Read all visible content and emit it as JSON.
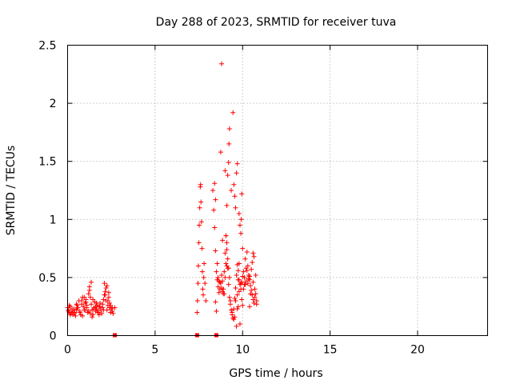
{
  "chart_data": {
    "type": "scatter",
    "title": "Day 288 of 2023, SRMTID for receiver tuva",
    "xlabel": "GPS time / hours",
    "ylabel": "SRMTID / TECUs",
    "xlim": [
      0,
      24
    ],
    "ylim": [
      0,
      2.5
    ],
    "xticks": [
      "0",
      "5",
      "10",
      "15",
      "20"
    ],
    "yticks": [
      "0",
      "0.5",
      "1",
      "1.5",
      "2",
      "2.5"
    ],
    "grid": true,
    "marker": "plus",
    "color": "#ff0000",
    "series": [
      {
        "name": "SRMTID",
        "x": [
          0.0,
          0.05,
          0.1,
          0.15,
          0.2,
          0.25,
          0.3,
          0.35,
          0.4,
          0.45,
          0.5,
          0.55,
          0.6,
          0.65,
          0.7,
          0.75,
          0.8,
          0.85,
          0.9,
          0.95,
          1.0,
          1.05,
          1.1,
          1.15,
          1.2,
          1.25,
          1.3,
          1.35,
          1.4,
          1.45,
          1.5,
          1.55,
          1.6,
          1.65,
          1.7,
          1.75,
          1.8,
          1.85,
          1.9,
          1.95,
          2.0,
          2.05,
          2.1,
          2.15,
          2.2,
          2.25,
          2.3,
          2.35,
          2.4,
          2.45,
          2.5,
          2.55,
          2.6,
          2.7,
          0.05,
          0.15,
          0.25,
          0.4,
          0.55,
          0.7,
          0.85,
          1.0,
          1.1,
          1.2,
          1.3,
          1.4,
          1.5,
          1.6,
          1.7,
          1.8,
          1.9,
          2.0,
          2.1,
          2.2,
          2.3,
          2.4,
          0.1,
          0.3,
          0.5,
          0.8,
          0.95,
          1.05,
          1.25,
          1.35,
          1.45,
          1.65,
          1.85,
          2.05,
          2.15,
          2.25,
          2.35,
          2.45,
          2.55,
          7.4,
          7.42,
          7.45,
          7.47,
          7.5,
          7.52,
          7.55,
          7.58,
          7.6,
          7.62,
          7.65,
          7.68,
          7.7,
          7.72,
          7.75,
          7.78,
          7.8,
          7.85,
          7.9,
          8.3,
          8.35,
          8.4,
          8.45,
          8.5,
          8.55,
          8.6,
          8.65,
          8.7,
          8.75,
          8.8,
          8.85,
          8.9,
          8.95,
          9.0,
          9.05,
          9.1,
          9.15,
          9.2,
          9.25,
          9.3,
          9.35,
          9.4,
          9.45,
          9.5,
          9.55,
          9.6,
          9.65,
          9.7,
          9.75,
          9.8,
          9.85,
          9.9,
          9.95,
          10.0,
          10.05,
          10.1,
          10.15,
          10.2,
          10.25,
          10.3,
          10.35,
          10.4,
          10.45,
          10.5,
          10.55,
          10.6,
          10.65,
          10.7,
          10.75,
          10.8,
          8.4,
          8.45,
          8.55,
          8.6,
          8.7,
          8.8,
          8.85,
          8.9,
          9.0,
          9.05,
          9.1,
          9.15,
          9.2,
          9.25,
          9.3,
          9.4,
          9.5,
          9.6,
          9.7,
          9.75,
          9.8,
          9.9,
          9.95,
          10.0,
          10.1,
          10.2,
          10.3,
          10.4,
          10.5,
          10.6,
          10.7,
          8.75,
          8.8,
          9.05,
          9.1,
          9.15,
          9.2,
          9.22,
          9.25,
          9.5,
          9.55,
          9.6,
          9.65,
          9.7,
          9.8,
          9.85,
          9.9,
          9.92,
          9.95,
          10.0,
          8.85,
          9.0,
          9.35,
          9.45,
          9.6,
          9.75,
          9.85,
          10.05,
          10.25,
          10.35,
          10.45,
          10.55,
          10.65,
          10.75,
          8.45,
          8.5,
          8.65,
          8.95,
          9.1,
          9.55,
          9.65,
          9.7,
          9.8,
          10.15,
          10.4,
          10.6,
          10.8
        ],
        "y": [
          0.24,
          0.22,
          0.2,
          0.25,
          0.19,
          0.21,
          0.18,
          0.23,
          0.2,
          0.17,
          0.22,
          0.26,
          0.24,
          0.3,
          0.21,
          0.18,
          0.27,
          0.33,
          0.25,
          0.22,
          0.28,
          0.31,
          0.24,
          0.2,
          0.36,
          0.42,
          0.33,
          0.27,
          0.22,
          0.18,
          0.24,
          0.29,
          0.21,
          0.23,
          0.26,
          0.2,
          0.25,
          0.28,
          0.22,
          0.19,
          0.24,
          0.31,
          0.45,
          0.38,
          0.3,
          0.22,
          0.26,
          0.33,
          0.28,
          0.2,
          0.23,
          0.21,
          0.19,
          0.24,
          0.21,
          0.18,
          0.23,
          0.19,
          0.24,
          0.2,
          0.17,
          0.22,
          0.26,
          0.21,
          0.19,
          0.16,
          0.23,
          0.25,
          0.21,
          0.18,
          0.22,
          0.27,
          0.35,
          0.41,
          0.3,
          0.24,
          0.26,
          0.2,
          0.27,
          0.3,
          0.33,
          0.29,
          0.39,
          0.46,
          0.31,
          0.28,
          0.25,
          0.22,
          0.35,
          0.43,
          0.37,
          0.26,
          0.24,
          0.2,
          0.3,
          0.45,
          0.6,
          0.8,
          0.95,
          1.1,
          1.28,
          1.3,
          1.15,
          0.98,
          0.75,
          0.55,
          0.4,
          0.35,
          0.5,
          0.62,
          0.45,
          0.3,
          1.25,
          1.08,
          0.93,
          0.73,
          0.55,
          0.48,
          0.42,
          0.37,
          0.4,
          0.45,
          0.52,
          0.47,
          0.4,
          0.55,
          0.71,
          0.86,
          0.74,
          0.58,
          0.44,
          0.33,
          0.27,
          0.22,
          0.18,
          0.15,
          0.23,
          0.32,
          0.41,
          0.52,
          0.61,
          0.56,
          0.48,
          0.44,
          0.4,
          0.46,
          0.51,
          0.55,
          0.5,
          0.44,
          0.47,
          0.56,
          0.6,
          0.52,
          0.48,
          0.43,
          0.39,
          0.35,
          0.31,
          0.28,
          0.33,
          0.36,
          0.3,
          1.31,
          1.17,
          0.62,
          0.5,
          0.46,
          0.41,
          0.38,
          0.36,
          0.5,
          0.62,
          0.8,
          0.66,
          0.58,
          0.5,
          0.3,
          0.2,
          0.14,
          0.3,
          0.35,
          0.48,
          0.62,
          0.45,
          0.31,
          0.26,
          0.44,
          0.58,
          0.45,
          0.51,
          0.57,
          0.46,
          0.4,
          1.58,
          2.34,
          0.86,
          1.12,
          1.38,
          1.49,
          1.65,
          1.78,
          1.3,
          1.2,
          1.1,
          1.4,
          1.48,
          1.05,
          0.95,
          0.88,
          1.0,
          1.22,
          0.75,
          0.82,
          1.42,
          1.25,
          1.92,
          0.3,
          0.25,
          0.1,
          0.4,
          0.72,
          0.49,
          0.36,
          0.63,
          0.68,
          0.52,
          0.29,
          0.21,
          0.47,
          0.36,
          0.6,
          0.16,
          0.08,
          0.23,
          0.38,
          0.66,
          0.25,
          0.71,
          0.27
        ]
      }
    ],
    "gap_markers_x": [
      2.7,
      7.4,
      8.5
    ]
  }
}
